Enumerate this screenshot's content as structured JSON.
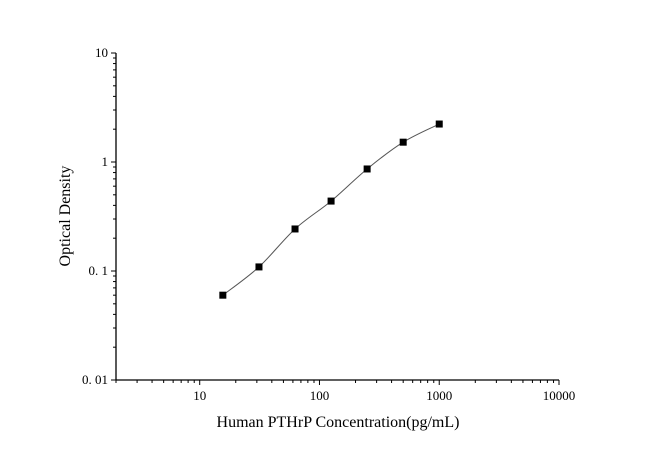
{
  "chart_data": {
    "type": "scatter",
    "title": "",
    "xlabel": "Human PTHrP Concentration(pg/mL)",
    "ylabel": "Optical Density",
    "x_scale": "log",
    "y_scale": "log",
    "xlim": [
      2,
      10000
    ],
    "ylim": [
      0.01,
      10
    ],
    "x_ticks": [
      10,
      100,
      1000,
      10000
    ],
    "x_tick_labels": [
      "10",
      "100",
      "1000",
      "10000"
    ],
    "y_ticks": [
      0.01,
      0.1,
      1,
      10
    ],
    "y_tick_labels": [
      "0. 01",
      "0. 1",
      "1",
      "10"
    ],
    "grid": false,
    "legend": "none",
    "marker": "square",
    "fit_line": true,
    "colors": {
      "marker": "#000000",
      "line": "#555555",
      "axis": "#000000"
    },
    "series": [
      {
        "x": [
          15.6,
          31.25,
          62.5,
          125,
          250,
          500,
          1000
        ],
        "y": [
          0.06,
          0.109,
          0.243,
          0.438,
          0.863,
          1.52,
          2.23
        ]
      }
    ]
  }
}
